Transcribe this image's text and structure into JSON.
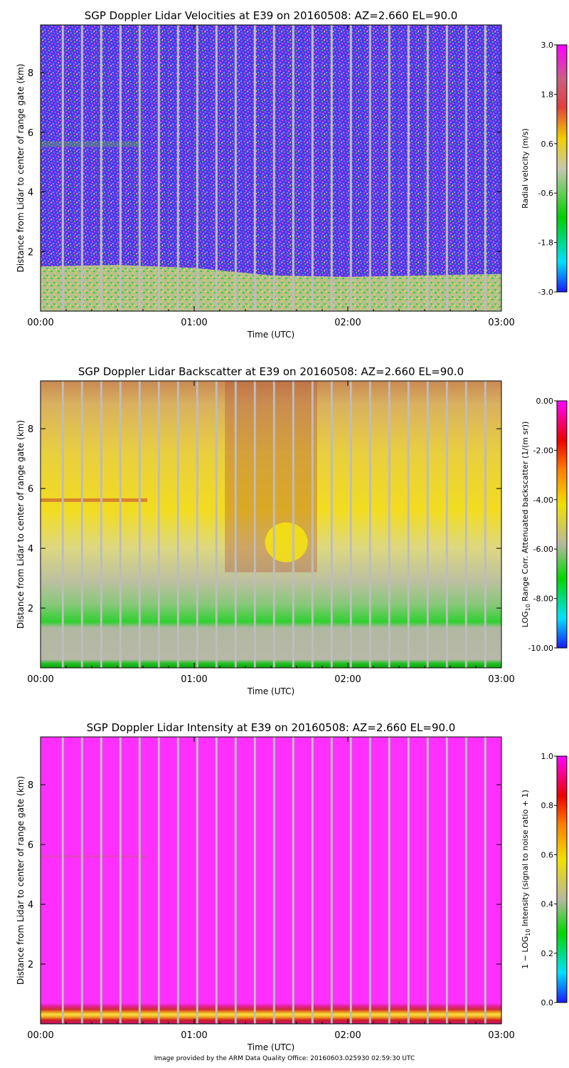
{
  "chart_data": [
    {
      "type": "heatmap",
      "title": "SGP Doppler Lidar Velocities at E39 on 20160508: AZ=2.660 EL=90.0",
      "xlabel": "Time (UTC)",
      "ylabel": "Distance from Lidar to center of range gate (km)",
      "x_ticks": [
        "00:00",
        "01:00",
        "02:00",
        "03:00"
      ],
      "xlim_hours": [
        0,
        3
      ],
      "y_ticks": [
        "2",
        "4",
        "6",
        "8"
      ],
      "ylim_km": [
        0,
        9.6
      ],
      "colorbar": {
        "label": "Radial velocity (m/s)",
        "ticks": [
          "-3.0",
          "-1.8",
          "-0.6",
          "0.6",
          "1.8",
          "3.0"
        ],
        "range": [
          -3.0,
          3.0
        ]
      },
      "features": {
        "boundary_layer_top_km": [
          {
            "hours": 0.0,
            "km": 1.5
          },
          {
            "hours": 0.5,
            "km": 1.55
          },
          {
            "hours": 1.0,
            "km": 1.45
          },
          {
            "hours": 1.5,
            "km": 1.2
          },
          {
            "hours": 2.0,
            "km": 1.15
          },
          {
            "hours": 2.5,
            "km": 1.2
          },
          {
            "hours": 3.0,
            "km": 1.25
          }
        ],
        "aerosol_layer_km": 5.6,
        "aerosol_layer_hours": [
          0.0,
          0.65
        ]
      }
    },
    {
      "type": "heatmap",
      "title": "SGP Doppler Lidar Backscatter at E39 on 20160508: AZ=2.660 EL=90.0",
      "xlabel": "Time (UTC)",
      "ylabel": "Distance from Lidar to center of range gate (km)",
      "x_ticks": [
        "00:00",
        "01:00",
        "02:00",
        "03:00"
      ],
      "xlim_hours": [
        0,
        3
      ],
      "y_ticks": [
        "2",
        "4",
        "6",
        "8"
      ],
      "ylim_km": [
        0,
        9.6
      ],
      "colorbar": {
        "label_main": "Range Corr. Attenuated backscatter (1/(m sr))",
        "label_prefix": "LOG",
        "label_sub": "10",
        "ticks": [
          "-10.00",
          "-8.00",
          "-6.00",
          "-4.00",
          "-2.00",
          "0.00"
        ],
        "range": [
          -10.0,
          0.0
        ]
      },
      "features": {
        "boundary_layer_top_km": [
          {
            "hours": 0.0,
            "km": 1.35
          },
          {
            "hours": 1.4,
            "km": 1.35
          },
          {
            "hours": 1.55,
            "km": 1.1
          },
          {
            "hours": 3.0,
            "km": 1.25
          }
        ],
        "enhanced_layer_hours": [
          1.2,
          1.8
        ],
        "enhanced_layer_km": [
          3.2,
          9.6
        ],
        "aerosol_layer_km": 5.6
      }
    },
    {
      "type": "heatmap",
      "title": "SGP Doppler Lidar Intensity at E39 on 20160508: AZ=2.660 EL=90.0",
      "xlabel": "Time (UTC)",
      "ylabel": "Distance from Lidar to center of range gate (km)",
      "x_ticks": [
        "00:00",
        "01:00",
        "02:00",
        "03:00"
      ],
      "xlim_hours": [
        0,
        3
      ],
      "y_ticks": [
        "2",
        "4",
        "6",
        "8"
      ],
      "ylim_km": [
        0,
        9.6
      ],
      "colorbar": {
        "label_pre": "1 − LOG",
        "label_sub": "10",
        "label_post": " Intensity (signal to noise ratio + 1)",
        "ticks": [
          "0.0",
          "0.2",
          "0.4",
          "0.6",
          "0.8",
          "1.0"
        ],
        "range": [
          0.0,
          1.0
        ]
      },
      "features": {
        "near_surface_band_km": [
          0.0,
          0.7
        ],
        "aerosol_layer_km": 5.6
      }
    }
  ],
  "footer": "Image provided by the ARM Data Quality Office: 20160603.025930 02:59:30 UTC"
}
